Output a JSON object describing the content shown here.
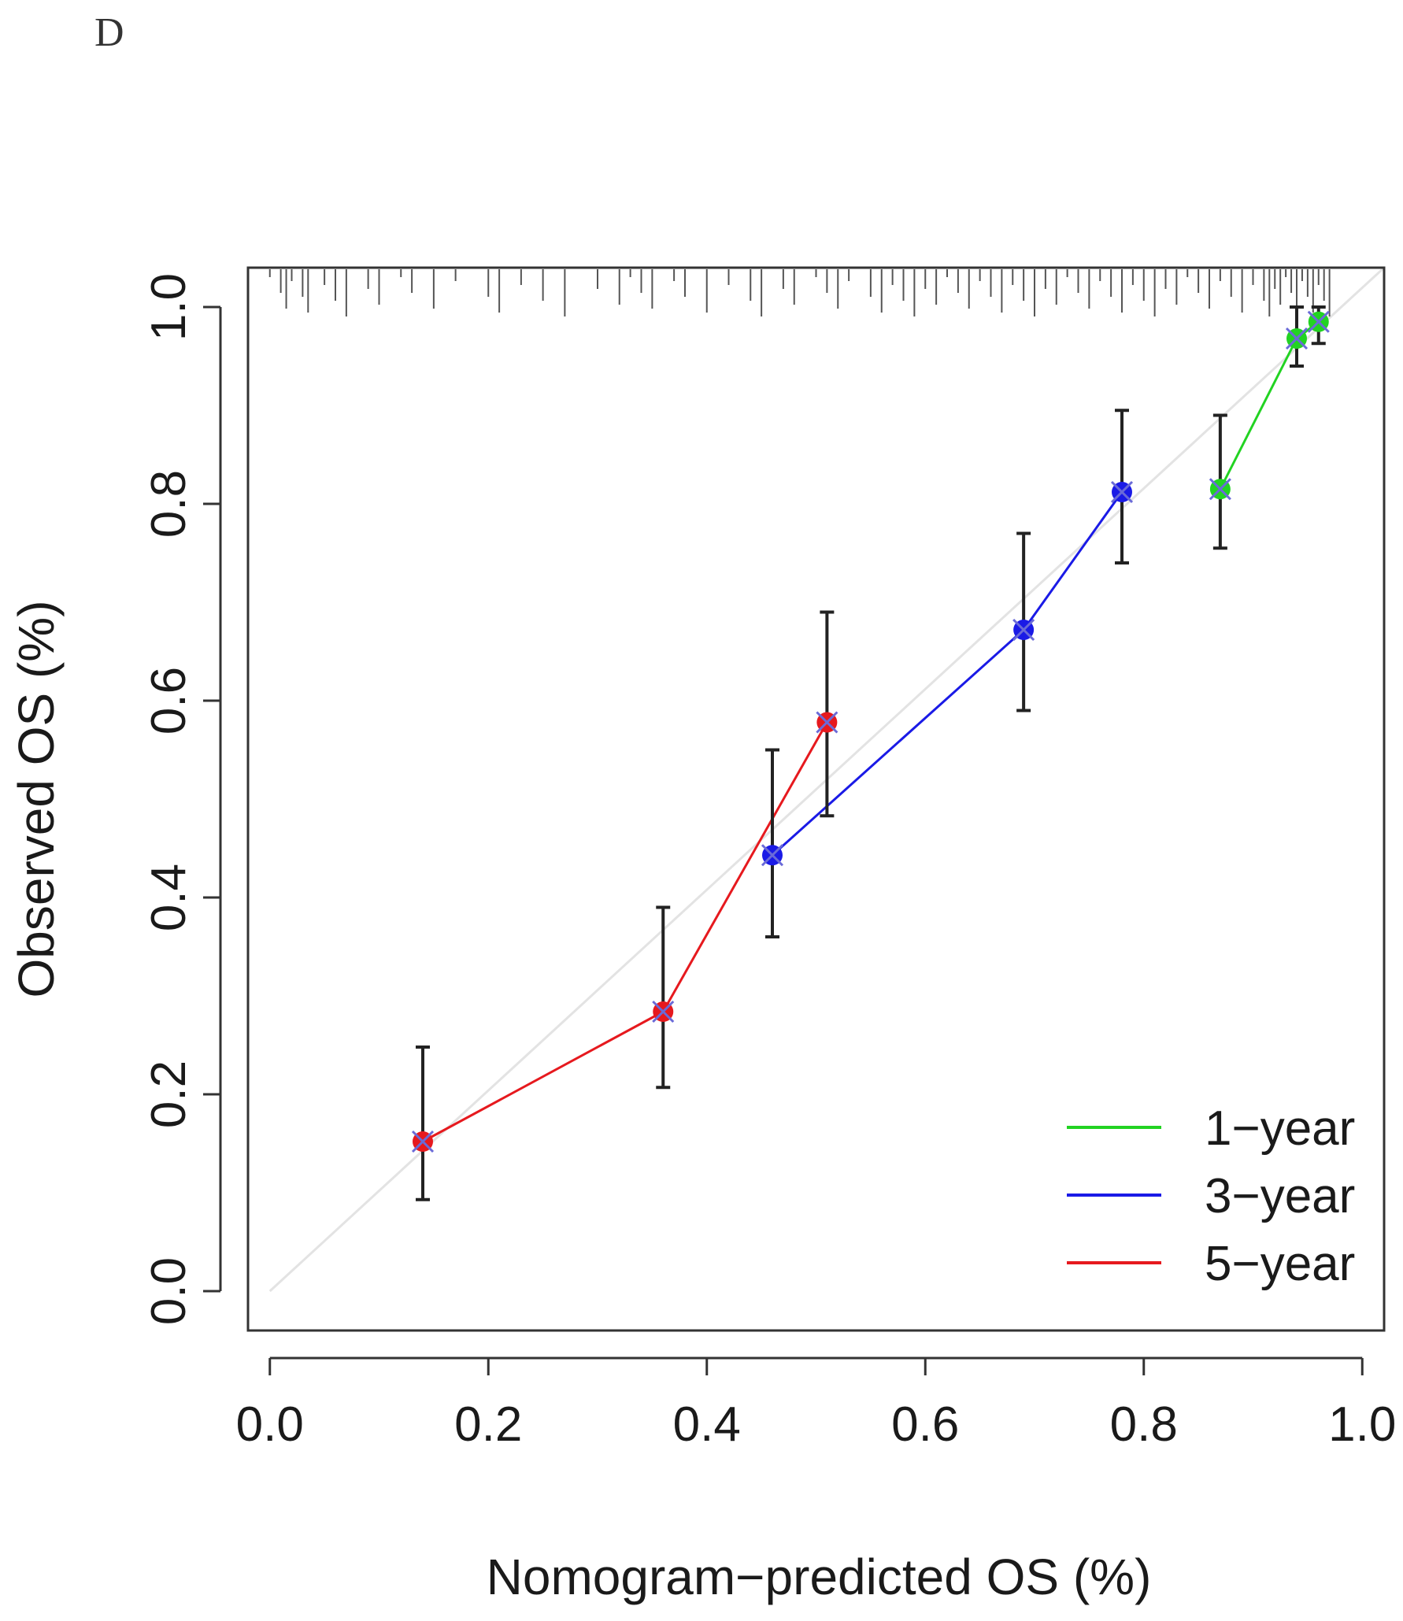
{
  "panel_label": "D",
  "chart_data": {
    "type": "line",
    "title": "",
    "xlabel": "Nomogram−predicted OS (%)",
    "ylabel": "Observed OS (%)",
    "xlim": [
      -0.02,
      1.02
    ],
    "ylim": [
      -0.04,
      1.04
    ],
    "x_ticks": [
      0.0,
      0.2,
      0.4,
      0.6,
      0.8,
      1.0
    ],
    "x_tick_labels": [
      "0.0",
      "0.2",
      "0.4",
      "0.6",
      "0.8",
      "1.0"
    ],
    "y_ticks": [
      0.0,
      0.2,
      0.4,
      0.6,
      0.8,
      1.0
    ],
    "y_tick_labels": [
      "0.0",
      "0.2",
      "0.4",
      "0.6",
      "0.8",
      "1.0"
    ],
    "reference_line": {
      "from": [
        0,
        0
      ],
      "to": [
        1.02,
        1.04
      ],
      "color": "#e3e3e3"
    },
    "legend": {
      "position": "bottom-right"
    },
    "series": [
      {
        "name": "1−year",
        "color": "#22d322",
        "points": [
          {
            "x": 0.87,
            "y": 0.815,
            "lo": 0.755,
            "hi": 0.89
          },
          {
            "x": 0.94,
            "y": 0.968,
            "lo": 0.94,
            "hi": 1.0
          },
          {
            "x": 0.96,
            "y": 0.985,
            "lo": 0.963,
            "hi": 1.0
          }
        ]
      },
      {
        "name": "3−year",
        "color": "#1a1ae6",
        "points": [
          {
            "x": 0.46,
            "y": 0.443,
            "lo": 0.36,
            "hi": 0.55
          },
          {
            "x": 0.69,
            "y": 0.672,
            "lo": 0.59,
            "hi": 0.77
          },
          {
            "x": 0.78,
            "y": 0.812,
            "lo": 0.74,
            "hi": 0.895
          }
        ]
      },
      {
        "name": "5−year",
        "color": "#e6191e",
        "points": [
          {
            "x": 0.14,
            "y": 0.152,
            "lo": 0.093,
            "hi": 0.248
          },
          {
            "x": 0.36,
            "y": 0.284,
            "lo": 0.207,
            "hi": 0.39
          },
          {
            "x": 0.51,
            "y": 0.578,
            "lo": 0.483,
            "hi": 0.69
          }
        ]
      }
    ],
    "rug": [
      0.0,
      0.01,
      0.015,
      0.02,
      0.03,
      0.035,
      0.05,
      0.06,
      0.07,
      0.09,
      0.1,
      0.12,
      0.13,
      0.15,
      0.17,
      0.2,
      0.21,
      0.23,
      0.25,
      0.27,
      0.3,
      0.32,
      0.33,
      0.34,
      0.35,
      0.37,
      0.38,
      0.4,
      0.42,
      0.44,
      0.45,
      0.47,
      0.48,
      0.5,
      0.51,
      0.52,
      0.53,
      0.55,
      0.56,
      0.57,
      0.58,
      0.59,
      0.6,
      0.61,
      0.62,
      0.63,
      0.64,
      0.65,
      0.66,
      0.67,
      0.68,
      0.69,
      0.7,
      0.71,
      0.72,
      0.73,
      0.74,
      0.75,
      0.76,
      0.77,
      0.78,
      0.79,
      0.8,
      0.81,
      0.82,
      0.83,
      0.84,
      0.85,
      0.86,
      0.87,
      0.88,
      0.89,
      0.9,
      0.91,
      0.915,
      0.92,
      0.925,
      0.93,
      0.935,
      0.94,
      0.945,
      0.95,
      0.955,
      0.96,
      0.965,
      0.97
    ]
  }
}
